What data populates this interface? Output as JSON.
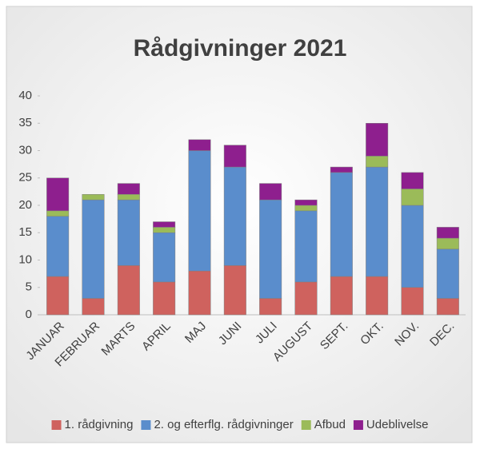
{
  "chart_data": {
    "type": "stacked_bar",
    "title": "Rådgivninger 2021",
    "categories": [
      "JANUAR",
      "FEBRUAR",
      "MARTS",
      "APRIL",
      "MAJ",
      "JUNI",
      "JULI",
      "AUGUST",
      "SEPT.",
      "OKT.",
      "NOV.",
      "DEC."
    ],
    "series": [
      {
        "name": "1. rådgivning",
        "color": "#cf625e",
        "values": [
          7,
          3,
          9,
          6,
          8,
          9,
          3,
          6,
          7,
          7,
          5,
          3
        ]
      },
      {
        "name": "2. og efterflg. rådgivninger",
        "color": "#5a8dcc",
        "values": [
          11,
          18,
          12,
          9,
          22,
          18,
          18,
          13,
          19,
          20,
          15,
          9
        ]
      },
      {
        "name": "Afbud",
        "color": "#9bbb59",
        "values": [
          1,
          1,
          1,
          1,
          0,
          0,
          0,
          1,
          0,
          2,
          3,
          2
        ]
      },
      {
        "name": "Udeblivelse",
        "color": "#8e1f8e",
        "values": [
          6,
          0,
          2,
          1,
          2,
          4,
          3,
          1,
          1,
          6,
          3,
          2
        ]
      }
    ],
    "ylim": [
      0,
      40
    ],
    "yticks": [
      0,
      5,
      10,
      15,
      20,
      25,
      30,
      35,
      40
    ],
    "legend": "bottom"
  }
}
